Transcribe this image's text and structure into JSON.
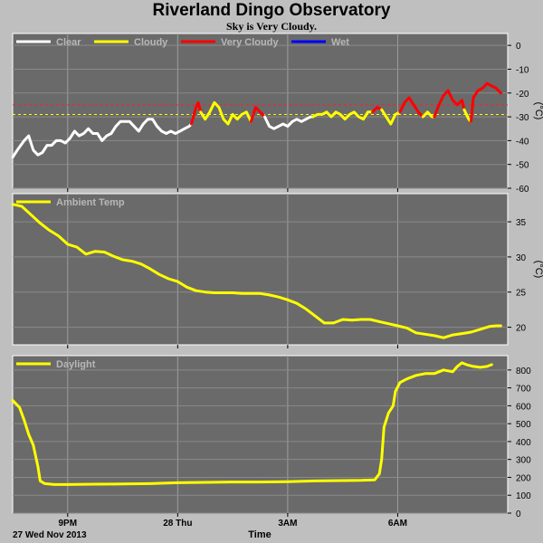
{
  "title": "Riverland Dingo Observatory",
  "subtitle": "Sky is Very Cloudy.",
  "chart_data": [
    {
      "type": "line",
      "panel": "sky",
      "ylabel": "(°C)",
      "ylim": [
        -60,
        5
      ],
      "yticks": [
        0,
        -10,
        -20,
        -30,
        -40,
        -50,
        -60
      ],
      "grid": true,
      "legend_position": "top-left",
      "thresholds": [
        {
          "value": -25,
          "color": "#ff2020"
        },
        {
          "value": -29,
          "color": "#ffff00"
        }
      ],
      "legend": [
        {
          "name": "Clear",
          "color": "#ffffff"
        },
        {
          "name": "Cloudy",
          "color": "#ffff00"
        },
        {
          "name": "Very Cloudy",
          "color": "#ff0000"
        },
        {
          "name": "Wet",
          "color": "#0000ff"
        }
      ],
      "segments": [
        {
          "name": "Clear",
          "color": "#ffffff",
          "points": [
            [
              0,
              -47
            ],
            [
              2,
              -44
            ],
            [
              5,
              -40
            ],
            [
              7,
              -38
            ],
            [
              9,
              -44
            ],
            [
              11,
              -46
            ],
            [
              13,
              -45
            ],
            [
              15,
              -42
            ],
            [
              17,
              -42
            ],
            [
              19,
              -40
            ],
            [
              21,
              -40
            ],
            [
              23,
              -41
            ],
            [
              25,
              -39
            ],
            [
              27,
              -36
            ],
            [
              29,
              -38
            ],
            [
              31,
              -37
            ],
            [
              33,
              -35
            ],
            [
              35,
              -37
            ],
            [
              37,
              -37
            ],
            [
              39,
              -40
            ],
            [
              41,
              -38
            ],
            [
              43,
              -37
            ],
            [
              45,
              -34
            ],
            [
              47,
              -32
            ],
            [
              49,
              -32
            ],
            [
              51,
              -32
            ],
            [
              53,
              -34
            ],
            [
              55,
              -36
            ],
            [
              57,
              -33
            ],
            [
              59,
              -31
            ],
            [
              61,
              -31
            ],
            [
              63,
              -34
            ],
            [
              65,
              -36
            ],
            [
              67,
              -37
            ],
            [
              69,
              -36
            ],
            [
              71,
              -37
            ],
            [
              73,
              -36
            ],
            [
              75,
              -35
            ],
            [
              77,
              -34
            ],
            [
              78,
              -33
            ]
          ]
        },
        {
          "name": "Very Cloudy",
          "color": "#ff0000",
          "points": [
            [
              78,
              -33
            ],
            [
              80,
              -26
            ],
            [
              81,
              -24
            ],
            [
              82,
              -28
            ]
          ]
        },
        {
          "name": "Cloudy",
          "color": "#ffff00",
          "points": [
            [
              82,
              -28
            ],
            [
              84,
              -31
            ],
            [
              86,
              -28
            ],
            [
              88,
              -24
            ],
            [
              90,
              -26
            ],
            [
              92,
              -31
            ],
            [
              94,
              -33
            ],
            [
              96,
              -29
            ],
            [
              98,
              -31
            ],
            [
              100,
              -29
            ],
            [
              102,
              -28
            ],
            [
              104,
              -32
            ]
          ]
        },
        {
          "name": "Very Cloudy",
          "color": "#ff0000",
          "points": [
            [
              104,
              -32
            ],
            [
              106,
              -26
            ],
            [
              108,
              -28
            ],
            [
              110,
              -30
            ]
          ]
        },
        {
          "name": "Clear",
          "color": "#ffffff",
          "points": [
            [
              110,
              -30
            ],
            [
              112,
              -34
            ],
            [
              114,
              -35
            ],
            [
              116,
              -34
            ],
            [
              118,
              -33
            ],
            [
              120,
              -34
            ],
            [
              122,
              -32
            ],
            [
              124,
              -31
            ],
            [
              126,
              -32
            ],
            [
              128,
              -31
            ],
            [
              130,
              -30
            ],
            [
              131,
              -30
            ]
          ]
        },
        {
          "name": "Cloudy",
          "color": "#ffff00",
          "points": [
            [
              131,
              -30
            ],
            [
              133,
              -29
            ],
            [
              135,
              -29
            ],
            [
              137,
              -28
            ],
            [
              139,
              -30
            ],
            [
              141,
              -28
            ],
            [
              143,
              -29
            ],
            [
              145,
              -31
            ],
            [
              147,
              -29
            ],
            [
              149,
              -28
            ],
            [
              151,
              -30
            ],
            [
              153,
              -31
            ],
            [
              155,
              -28
            ],
            [
              157,
              -28
            ]
          ]
        },
        {
          "name": "Very Cloudy",
          "color": "#ff0000",
          "points": [
            [
              157,
              -28
            ],
            [
              159,
              -26
            ],
            [
              161,
              -27
            ]
          ]
        },
        {
          "name": "Cloudy",
          "color": "#ffff00",
          "points": [
            [
              161,
              -27
            ],
            [
              163,
              -30
            ],
            [
              165,
              -33
            ],
            [
              167,
              -29
            ],
            [
              169,
              -28
            ]
          ]
        },
        {
          "name": "Very Cloudy",
          "color": "#ff0000",
          "points": [
            [
              169,
              -28
            ],
            [
              171,
              -24
            ],
            [
              173,
              -22
            ],
            [
              175,
              -25
            ],
            [
              177,
              -28
            ],
            [
              179,
              -30
            ]
          ]
        },
        {
          "name": "Cloudy",
          "color": "#ffff00",
          "points": [
            [
              179,
              -30
            ],
            [
              181,
              -28
            ],
            [
              183,
              -30
            ],
            [
              184,
              -30
            ]
          ]
        },
        {
          "name": "Very Cloudy",
          "color": "#ff0000",
          "points": [
            [
              184,
              -30
            ],
            [
              186,
              -25
            ],
            [
              188,
              -21
            ],
            [
              190,
              -19
            ],
            [
              192,
              -23
            ],
            [
              194,
              -25
            ],
            [
              196,
              -23
            ],
            [
              197,
              -27
            ]
          ]
        },
        {
          "name": "Cloudy",
          "color": "#ffff00",
          "points": [
            [
              197,
              -27
            ],
            [
              199,
              -31
            ],
            [
              200,
              -32
            ]
          ]
        },
        {
          "name": "Very Cloudy",
          "color": "#ff0000",
          "points": [
            [
              200,
              -32
            ],
            [
              201,
              -22
            ],
            [
              203,
              -19
            ],
            [
              205,
              -18
            ],
            [
              207,
              -16
            ],
            [
              209,
              -17
            ],
            [
              211,
              -18
            ],
            [
              213,
              -20
            ]
          ]
        }
      ]
    },
    {
      "type": "line",
      "panel": "ambient",
      "ylabel": "(°C)",
      "ylim": [
        17.5,
        39
      ],
      "yticks": [
        35,
        30,
        25,
        20
      ],
      "grid": true,
      "legend_position": "top-left",
      "series": [
        {
          "name": "Ambient Temp",
          "color": "#ffff00",
          "points": [
            [
              0,
              37.5
            ],
            [
              4,
              37.2
            ],
            [
              8,
              36
            ],
            [
              12,
              34.8
            ],
            [
              16,
              33.8
            ],
            [
              20,
              33
            ],
            [
              24,
              31.8
            ],
            [
              28,
              31.4
            ],
            [
              32,
              30.4
            ],
            [
              36,
              30.8
            ],
            [
              40,
              30.7
            ],
            [
              44,
              30.1
            ],
            [
              48,
              29.6
            ],
            [
              52,
              29.4
            ],
            [
              56,
              29
            ],
            [
              60,
              28.3
            ],
            [
              64,
              27.5
            ],
            [
              68,
              26.9
            ],
            [
              72,
              26.5
            ],
            [
              76,
              25.7
            ],
            [
              80,
              25.2
            ],
            [
              84,
              25
            ],
            [
              88,
              24.9
            ],
            [
              92,
              24.9
            ],
            [
              96,
              24.9
            ],
            [
              100,
              24.8
            ],
            [
              104,
              24.8
            ],
            [
              108,
              24.8
            ],
            [
              112,
              24.6
            ],
            [
              116,
              24.3
            ],
            [
              120,
              23.9
            ],
            [
              124,
              23.4
            ],
            [
              128,
              22.6
            ],
            [
              132,
              21.6
            ],
            [
              136,
              20.6
            ],
            [
              140,
              20.6
            ],
            [
              144,
              21.1
            ],
            [
              148,
              21
            ],
            [
              152,
              21.1
            ],
            [
              156,
              21.1
            ],
            [
              160,
              20.8
            ],
            [
              164,
              20.5
            ],
            [
              168,
              20.2
            ],
            [
              172,
              19.9
            ],
            [
              176,
              19.2
            ],
            [
              180,
              19
            ],
            [
              184,
              18.8
            ],
            [
              188,
              18.5
            ],
            [
              192,
              18.9
            ],
            [
              196,
              19.1
            ],
            [
              200,
              19.3
            ],
            [
              204,
              19.7
            ],
            [
              208,
              20.1
            ],
            [
              211,
              20.2
            ],
            [
              213,
              20.2
            ]
          ]
        }
      ]
    },
    {
      "type": "line",
      "panel": "daylight",
      "ylim": [
        0,
        880
      ],
      "yticks": [
        800,
        700,
        600,
        500,
        400,
        300,
        200,
        100,
        0
      ],
      "grid": true,
      "legend_position": "top-left",
      "x_tick_labels": [
        "9PM",
        "28 Thu",
        "3AM",
        "6AM"
      ],
      "x_ticks_at": [
        24,
        72,
        120,
        168
      ],
      "x_start_label": "27 Wed Nov 2013",
      "xlabel": "Time",
      "series": [
        {
          "name": "Daylight",
          "color": "#ffff00",
          "points": [
            [
              0,
              630
            ],
            [
              3,
              590
            ],
            [
              5,
              520
            ],
            [
              7,
              440
            ],
            [
              9,
              380
            ],
            [
              11,
              260
            ],
            [
              12,
              180
            ],
            [
              14,
              165
            ],
            [
              18,
              160
            ],
            [
              24,
              160
            ],
            [
              36,
              162
            ],
            [
              48,
              163
            ],
            [
              60,
              165
            ],
            [
              72,
              170
            ],
            [
              84,
              172
            ],
            [
              96,
              174
            ],
            [
              108,
              174
            ],
            [
              120,
              176
            ],
            [
              132,
              180
            ],
            [
              144,
              182
            ],
            [
              152,
              183
            ],
            [
              158,
              186
            ],
            [
              160,
              220
            ],
            [
              161,
              300
            ],
            [
              162,
              480
            ],
            [
              164,
              560
            ],
            [
              166,
              600
            ],
            [
              167,
              680
            ],
            [
              169,
              730
            ],
            [
              172,
              750
            ],
            [
              176,
              770
            ],
            [
              180,
              780
            ],
            [
              184,
              780
            ],
            [
              188,
              800
            ],
            [
              192,
              790
            ],
            [
              194,
              820
            ],
            [
              196,
              840
            ],
            [
              198,
              830
            ],
            [
              201,
              820
            ],
            [
              204,
              815
            ],
            [
              207,
              820
            ],
            [
              209,
              830
            ]
          ]
        }
      ]
    }
  ]
}
